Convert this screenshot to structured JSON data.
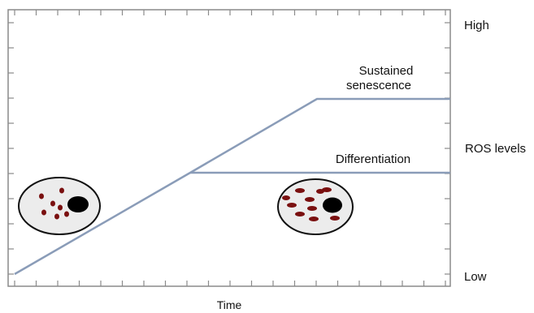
{
  "figure": {
    "right_axis": {
      "high_label": "High",
      "middle_label": "ROS levels",
      "low_label": "Low"
    },
    "x_axis_label": "Time",
    "branch_labels": {
      "upper_line1": "Sustained",
      "upper_line2": "senescence",
      "lower": "Differentiation"
    },
    "cells": [
      {
        "name": "cell-low-ros",
        "granule_count": 7
      },
      {
        "name": "cell-high-ros",
        "granule_count": 10
      }
    ]
  },
  "colors": {
    "frame": "#8a8a8a",
    "trajectory": "#8a9cb8",
    "granule": "#7a1010",
    "nucleus": "#000000",
    "cell_fill": "#ececec"
  }
}
